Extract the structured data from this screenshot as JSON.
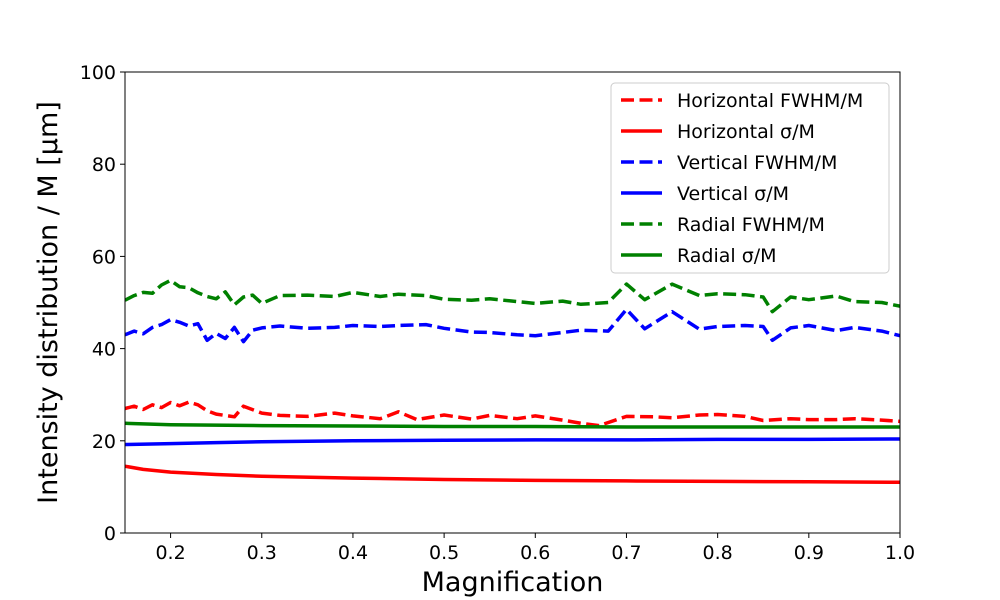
{
  "chart_data": {
    "type": "line",
    "xlabel": "Magnification",
    "ylabel": "Intensity distribution / M [μm]",
    "xlim": [
      0.15,
      1.0
    ],
    "ylim": [
      0,
      100
    ],
    "x_ticks": [
      "0.2",
      "0.3",
      "0.4",
      "0.5",
      "0.6",
      "0.7",
      "0.8",
      "0.9",
      "1.0"
    ],
    "y_ticks": [
      "0",
      "20",
      "40",
      "60",
      "80",
      "100"
    ],
    "grid": false,
    "legend_position": "top-right",
    "series": [
      {
        "name": "Horizontal FWHM/M",
        "color": "#ff0000",
        "style": "dashed",
        "x": [
          0.15,
          0.16,
          0.17,
          0.18,
          0.19,
          0.2,
          0.21,
          0.22,
          0.23,
          0.24,
          0.25,
          0.27,
          0.28,
          0.3,
          0.32,
          0.35,
          0.38,
          0.4,
          0.43,
          0.45,
          0.47,
          0.5,
          0.53,
          0.55,
          0.58,
          0.6,
          0.63,
          0.65,
          0.67,
          0.7,
          0.73,
          0.75,
          0.78,
          0.8,
          0.83,
          0.85,
          0.88,
          0.9,
          0.93,
          0.95,
          0.98,
          1.0
        ],
        "y": [
          27,
          27.5,
          26.8,
          27.8,
          27.2,
          28.3,
          27.6,
          28.4,
          27.8,
          26.5,
          25.8,
          25.2,
          27.5,
          26.0,
          25.5,
          25.3,
          26.0,
          25.4,
          24.8,
          26.3,
          24.6,
          25.6,
          24.7,
          25.5,
          24.8,
          25.4,
          24.5,
          23.8,
          23.3,
          25.3,
          25.2,
          25.0,
          25.6,
          25.7,
          25.3,
          24.4,
          24.8,
          24.6,
          24.6,
          24.8,
          24.5,
          24.2
        ]
      },
      {
        "name": "Horizontal σ/M",
        "color": "#ff0000",
        "style": "solid",
        "x": [
          0.15,
          0.17,
          0.2,
          0.25,
          0.3,
          0.4,
          0.5,
          0.6,
          0.7,
          0.8,
          0.9,
          1.0
        ],
        "y": [
          14.5,
          13.8,
          13.2,
          12.7,
          12.3,
          11.9,
          11.6,
          11.4,
          11.3,
          11.2,
          11.1,
          11.0
        ]
      },
      {
        "name": "Vertical FWHM/M",
        "color": "#0000ff",
        "style": "dashed",
        "x": [
          0.15,
          0.16,
          0.17,
          0.18,
          0.19,
          0.2,
          0.21,
          0.22,
          0.23,
          0.24,
          0.25,
          0.26,
          0.27,
          0.28,
          0.29,
          0.3,
          0.32,
          0.35,
          0.38,
          0.4,
          0.43,
          0.45,
          0.48,
          0.5,
          0.53,
          0.55,
          0.58,
          0.6,
          0.63,
          0.65,
          0.68,
          0.7,
          0.72,
          0.75,
          0.78,
          0.8,
          0.83,
          0.85,
          0.86,
          0.88,
          0.9,
          0.93,
          0.95,
          0.98,
          1.0
        ],
        "y": [
          43,
          43.8,
          43.2,
          44.6,
          45.2,
          46.3,
          45.7,
          44.9,
          45.4,
          41.8,
          43.3,
          42.2,
          44.6,
          41.5,
          44.0,
          44.5,
          44.9,
          44.4,
          44.6,
          45.0,
          44.8,
          45.0,
          45.2,
          44.4,
          43.6,
          43.5,
          43.0,
          42.8,
          43.5,
          44.0,
          43.8,
          48.5,
          44.3,
          48.0,
          44.2,
          44.8,
          45.0,
          44.8,
          41.8,
          44.5,
          45.0,
          43.9,
          44.6,
          43.8,
          42.8
        ]
      },
      {
        "name": "Vertical σ/M",
        "color": "#0000ff",
        "style": "solid",
        "x": [
          0.15,
          0.2,
          0.25,
          0.3,
          0.4,
          0.5,
          0.6,
          0.7,
          0.8,
          0.9,
          1.0
        ],
        "y": [
          19.2,
          19.4,
          19.6,
          19.8,
          20.0,
          20.1,
          20.2,
          20.2,
          20.3,
          20.3,
          20.4
        ]
      },
      {
        "name": "Radial FWHM/M",
        "color": "#008000",
        "style": "dashed",
        "x": [
          0.15,
          0.16,
          0.17,
          0.18,
          0.19,
          0.2,
          0.21,
          0.22,
          0.23,
          0.24,
          0.25,
          0.26,
          0.27,
          0.28,
          0.29,
          0.3,
          0.32,
          0.35,
          0.38,
          0.4,
          0.43,
          0.45,
          0.48,
          0.5,
          0.53,
          0.55,
          0.58,
          0.6,
          0.63,
          0.65,
          0.68,
          0.7,
          0.72,
          0.75,
          0.78,
          0.8,
          0.83,
          0.85,
          0.86,
          0.88,
          0.9,
          0.93,
          0.95,
          0.98,
          1.0
        ],
        "y": [
          50.5,
          51.5,
          52.2,
          52.0,
          53.8,
          54.8,
          53.4,
          53.2,
          52.1,
          51.3,
          50.8,
          52.3,
          49.5,
          51.2,
          51.6,
          49.8,
          51.5,
          51.6,
          51.3,
          52.2,
          51.3,
          51.8,
          51.5,
          50.7,
          50.5,
          50.8,
          50.2,
          49.8,
          50.3,
          49.6,
          50.0,
          54.0,
          50.6,
          54.0,
          51.5,
          51.9,
          51.7,
          51.2,
          48.0,
          51.2,
          50.6,
          51.4,
          50.2,
          50.0,
          49.2
        ]
      },
      {
        "name": "Radial σ/M",
        "color": "#008000",
        "style": "solid",
        "x": [
          0.15,
          0.2,
          0.3,
          0.4,
          0.5,
          0.6,
          0.7,
          0.8,
          0.9,
          1.0
        ],
        "y": [
          23.8,
          23.5,
          23.3,
          23.2,
          23.1,
          23.1,
          23.0,
          23.0,
          23.0,
          23.0
        ]
      }
    ]
  }
}
